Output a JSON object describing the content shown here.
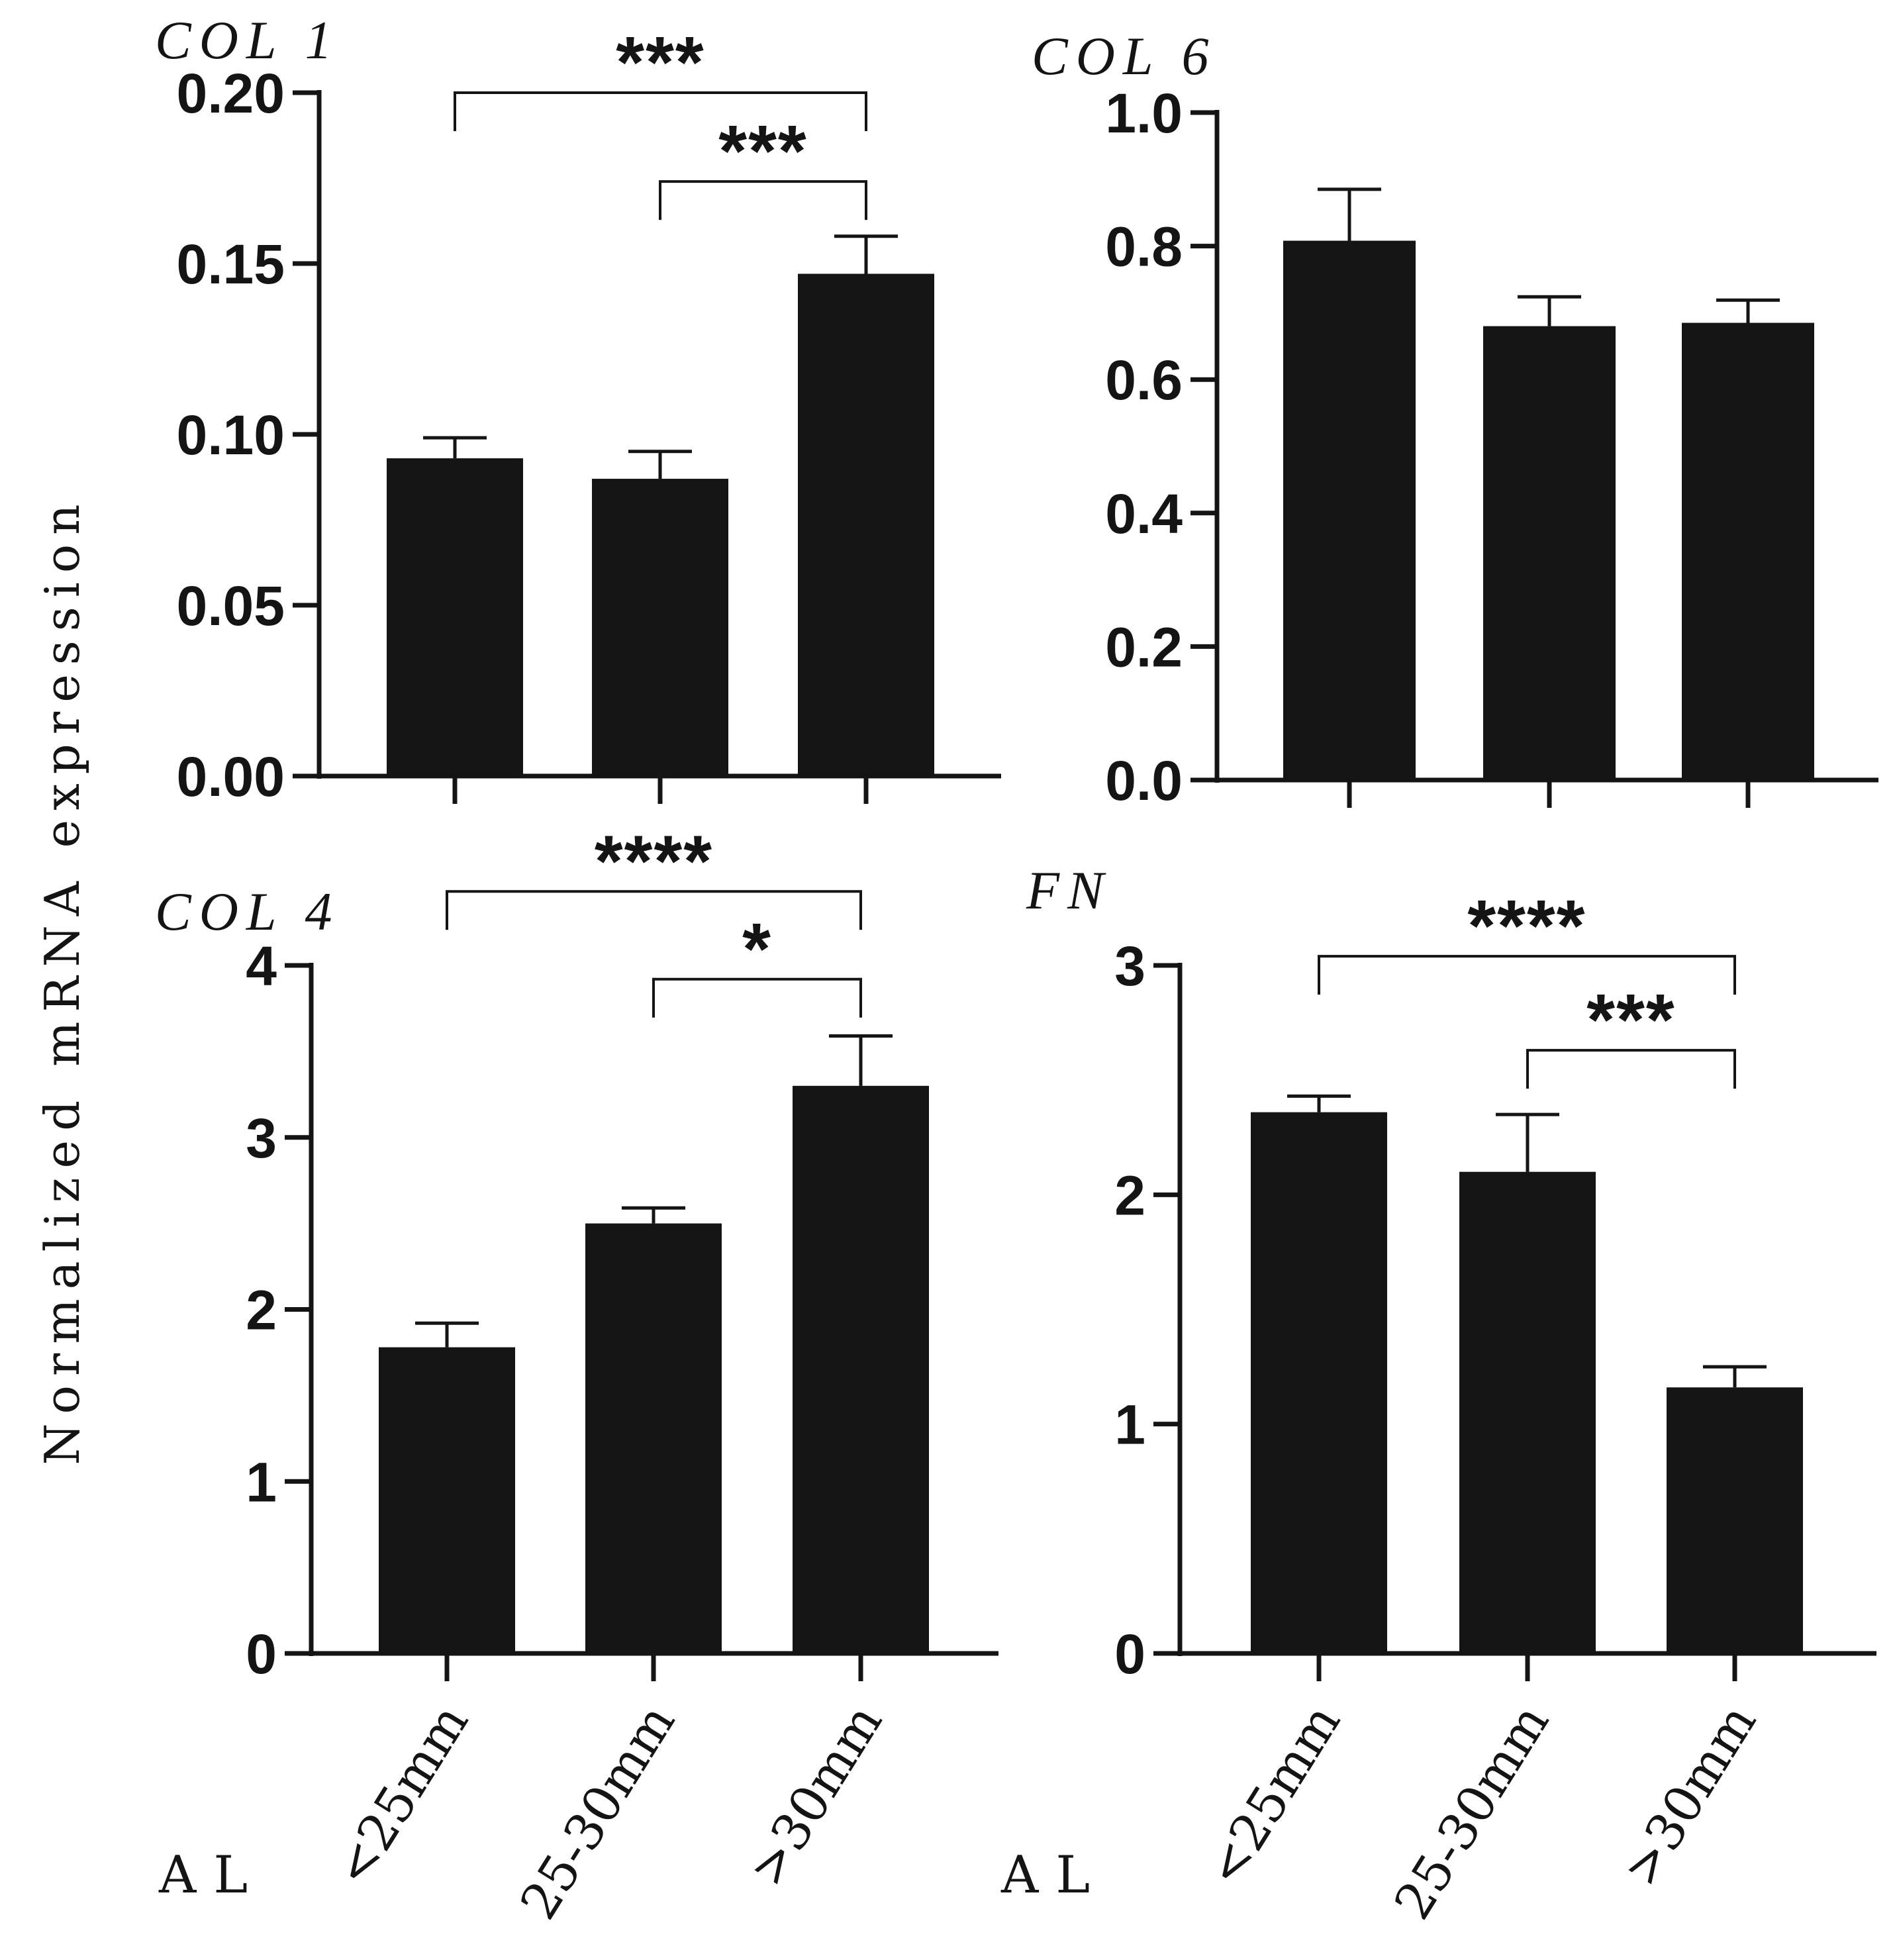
{
  "figure": {
    "ylabel": "Normalized mRNA expression",
    "xgroup_label": "AL",
    "categories": [
      "<25mm",
      "25-30mm",
      ">30mm"
    ]
  },
  "chart_data": [
    {
      "type": "bar",
      "title": "COL 1",
      "categories": [
        "<25mm",
        "25-30mm",
        ">30mm"
      ],
      "values": [
        0.093,
        0.087,
        0.147
      ],
      "errors": [
        0.006,
        0.008,
        0.011
      ],
      "ylim": [
        0,
        0.2
      ],
      "yticks": [
        0.0,
        0.05,
        0.1,
        0.15,
        0.2
      ],
      "ytick_labels": [
        "0.00",
        "0.05",
        "0.10",
        "0.15",
        "0.20"
      ],
      "xlabel": "AL",
      "ylabel": "Normalized mRNA expression",
      "significance": [
        {
          "from": 0,
          "to": 2,
          "label": "***",
          "y": 0.2
        },
        {
          "from": 1,
          "to": 2,
          "label": "***",
          "y": 0.174
        }
      ]
    },
    {
      "type": "bar",
      "title": "COL 6",
      "categories": [
        "<25mm",
        "25-30mm",
        ">30mm"
      ],
      "values": [
        0.808,
        0.68,
        0.685
      ],
      "errors": [
        0.077,
        0.044,
        0.034
      ],
      "ylim": [
        0,
        1.0
      ],
      "yticks": [
        0.0,
        0.2,
        0.4,
        0.6,
        0.8,
        1.0
      ],
      "ytick_labels": [
        "0.0",
        "0.2",
        "0.4",
        "0.6",
        "0.8",
        "1.0"
      ],
      "xlabel": "AL",
      "ylabel": "Normalized mRNA expression",
      "significance": []
    },
    {
      "type": "bar",
      "title": "COL 4",
      "categories": [
        "<25mm",
        "25-30mm",
        ">30mm"
      ],
      "values": [
        1.78,
        2.5,
        3.3
      ],
      "errors": [
        0.14,
        0.09,
        0.29
      ],
      "ylim": [
        0,
        4
      ],
      "yticks": [
        0,
        1,
        2,
        3,
        4
      ],
      "ytick_labels": [
        "0",
        "1",
        "2",
        "3",
        "4"
      ],
      "xlabel": "AL",
      "ylabel": "Normalized mRNA expression",
      "significance": [
        {
          "from": 0,
          "to": 2,
          "label": "****",
          "y": 4.43
        },
        {
          "from": 1,
          "to": 2,
          "label": "*",
          "y": 3.92
        }
      ]
    },
    {
      "type": "bar",
      "title": "FN",
      "categories": [
        "<25mm",
        "25-30mm",
        ">30mm"
      ],
      "values": [
        2.36,
        2.1,
        1.16
      ],
      "errors": [
        0.07,
        0.25,
        0.09
      ],
      "ylim": [
        0,
        3
      ],
      "yticks": [
        0,
        1,
        2,
        3
      ],
      "ytick_labels": [
        "0",
        "1",
        "2",
        "3"
      ],
      "xlabel": "AL",
      "ylabel": "Normalized mRNA expression",
      "significance": [
        {
          "from": 0,
          "to": 2,
          "label": "****",
          "y": 3.04
        },
        {
          "from": 1,
          "to": 2,
          "label": "***",
          "y": 2.63
        }
      ]
    }
  ]
}
